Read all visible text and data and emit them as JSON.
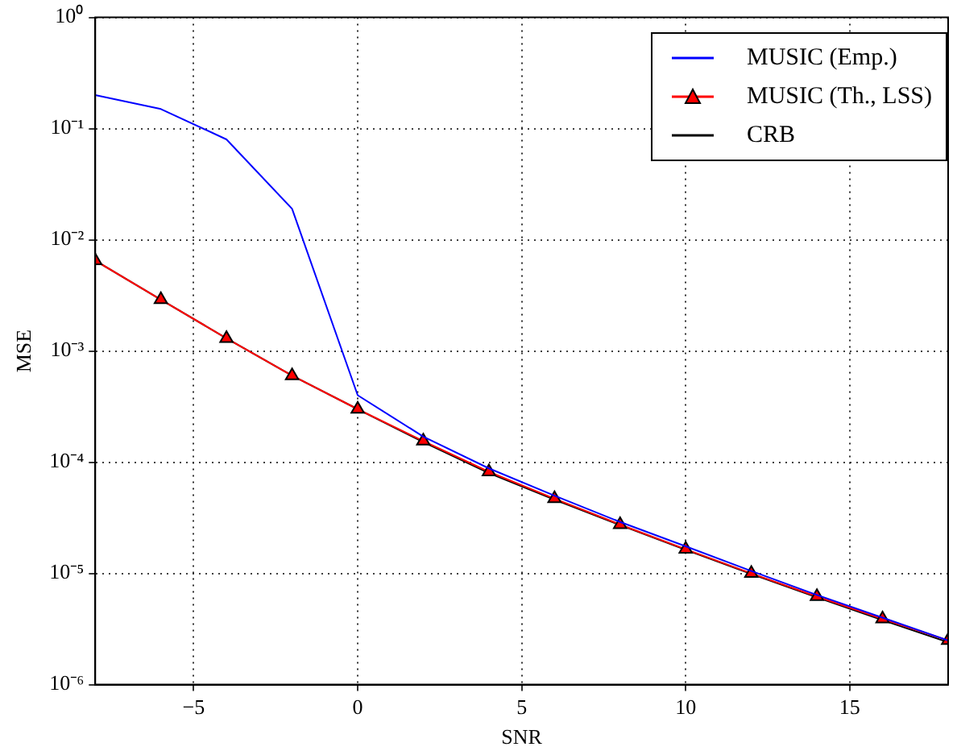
{
  "chart_data": {
    "type": "line",
    "xlabel": "SNR",
    "ylabel": "MSE",
    "log": "y",
    "grid": true,
    "legend": "top right",
    "line_style": "solid",
    "x": [
      -8,
      -6,
      -4,
      -2,
      0,
      2,
      4,
      6,
      8,
      10,
      12,
      14,
      16,
      18
    ],
    "xlim": [
      -8,
      18
    ],
    "xticks": [
      {
        "value": -5,
        "label": "−5"
      },
      0,
      5,
      10,
      15
    ],
    "ylim": [
      1e-06,
      1
    ],
    "yticks": [
      {
        "value": 1e-06,
        "label": "10⁻⁶"
      },
      {
        "value": 1e-05,
        "label": "10⁻⁵"
      },
      {
        "value": 0.0001,
        "label": "10⁻⁴"
      },
      {
        "value": 0.001,
        "label": "10⁻³"
      },
      {
        "value": 0.01,
        "label": "10⁻²"
      },
      {
        "value": 0.1,
        "label": "10⁻¹"
      },
      {
        "value": 1,
        "label": "10⁰"
      }
    ],
    "series": [
      {
        "name": "MUSIC (Emp.)",
        "color": "#0000ff",
        "marker": "none",
        "values": [
          0.2,
          0.15,
          0.08,
          0.019,
          0.0004,
          0.00017,
          8.8e-05,
          5e-05,
          2.9e-05,
          1.75e-05,
          1.05e-05,
          6.4e-06,
          4e-06,
          2.5e-06
        ]
      },
      {
        "name": "MUSIC (Th., LSS)",
        "color": "#ff0000",
        "marker": "triangle",
        "values": [
          0.0065,
          0.0029,
          0.0013,
          0.0006,
          0.0003,
          0.000155,
          8.2e-05,
          4.7e-05,
          2.75e-05,
          1.65e-05,
          1e-05,
          6.2e-06,
          3.9e-06,
          2.5e-06
        ]
      },
      {
        "name": "CRB",
        "color": "#000000",
        "marker": "none",
        "values": [
          0.0065,
          0.0029,
          0.0013,
          0.0006,
          0.0003,
          0.000152,
          8e-05,
          4.6e-05,
          2.72e-05,
          1.63e-05,
          9.9e-06,
          6.1e-06,
          3.8e-06,
          2.4e-06
        ]
      }
    ]
  }
}
